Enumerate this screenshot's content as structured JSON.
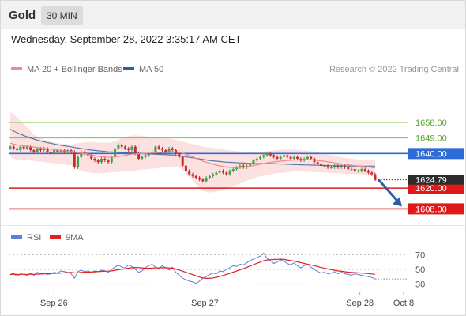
{
  "header": {
    "symbol": "Gold",
    "timeframe": "30 MIN"
  },
  "datetime": "Wednesday, September 28, 2022 3:35:17 AM CET",
  "legend": {
    "ma20": {
      "label": "MA 20 + Bollinger Bands",
      "color": "#f08a8a"
    },
    "ma50": {
      "label": "MA 50",
      "color": "#2d5fa0"
    },
    "credit": "Research © 2022 Trading Central"
  },
  "rsi_legend": {
    "rsi": {
      "label": "RSI",
      "color": "#5b7fd6"
    },
    "ma9": {
      "label": "9MA",
      "color": "#e02020"
    }
  },
  "chart_data": [
    {
      "type": "candlestick",
      "ylim": [
        1599.5,
        1679
      ],
      "levels": [
        {
          "value": 1658.0,
          "label": "1658.00",
          "kind": "resistance",
          "color": "#7cc34a"
        },
        {
          "value": 1649.0,
          "label": "1649.00",
          "kind": "resistance",
          "color": "#7cc34a"
        },
        {
          "value": 1640.0,
          "label": "1640.00",
          "kind": "pivot",
          "color": "#2d6bd6"
        },
        {
          "value": 1620.0,
          "label": "1620.00",
          "kind": "support",
          "color": "#e01818"
        },
        {
          "value": 1608.0,
          "label": "1608.00",
          "kind": "support",
          "color": "#e01818"
        }
      ],
      "last_price": {
        "value": 1624.79,
        "label": "1624.79"
      },
      "projection": {
        "from": 1625,
        "to": 1608
      },
      "x_ticks": [
        {
          "label": "Sep 26",
          "pos": 0.11
        },
        {
          "label": "Sep 27",
          "pos": 0.49
        },
        {
          "label": "Sep 28",
          "pos": 0.88
        },
        {
          "label": "Oct 8",
          "pos": 0.99
        }
      ],
      "close": [
        1644,
        1643,
        1642,
        1644,
        1643,
        1644,
        1642,
        1641,
        1643,
        1642,
        1643,
        1641,
        1640,
        1642,
        1641,
        1642,
        1641,
        1642,
        1641,
        1632,
        1638,
        1641,
        1640,
        1639,
        1637,
        1636,
        1635,
        1637,
        1636,
        1635,
        1638,
        1643,
        1645,
        1644,
        1643,
        1642,
        1644,
        1640,
        1637,
        1638,
        1639,
        1640,
        1641,
        1644,
        1643,
        1642,
        1641,
        1643,
        1642,
        1640,
        1638,
        1633,
        1630,
        1628,
        1627,
        1626,
        1625,
        1624,
        1626,
        1627,
        1628,
        1629,
        1630,
        1629,
        1628,
        1630,
        1631,
        1632,
        1633,
        1632,
        1633,
        1634,
        1636,
        1637,
        1638,
        1639,
        1640,
        1639,
        1638,
        1637,
        1638,
        1639,
        1638,
        1637,
        1638,
        1637,
        1636,
        1637,
        1638,
        1637,
        1635,
        1634,
        1633,
        1633,
        1632,
        1632,
        1633,
        1632,
        1633,
        1632,
        1631,
        1631,
        1630,
        1630,
        1631,
        1630,
        1629,
        1628,
        1625
      ],
      "ma20": [
        1646,
        1645.5,
        1645,
        1644.8,
        1644.5,
        1644.2,
        1644,
        1643.8,
        1643.5,
        1643.3,
        1643,
        1642.8,
        1642.5,
        1642.3,
        1642,
        1641.8,
        1641.6,
        1641.4,
        1641.2,
        1640.8,
        1640.5,
        1640.2,
        1640,
        1639.6,
        1639.2,
        1638.8,
        1638.4,
        1638.2,
        1638,
        1637.8,
        1637.8,
        1638,
        1638.3,
        1638.6,
        1639,
        1639.3,
        1639.6,
        1639.8,
        1639.9,
        1640,
        1640.1,
        1640.2,
        1640.3,
        1640.5,
        1640.6,
        1640.7,
        1640.8,
        1641,
        1641.1,
        1641,
        1640.7,
        1640.2,
        1639.5,
        1638.8,
        1638,
        1637.2,
        1636.4,
        1635.6,
        1635,
        1634.4,
        1633.8,
        1633.3,
        1632.9,
        1632.5,
        1632.2,
        1632,
        1631.9,
        1631.9,
        1632,
        1632.2,
        1632.4,
        1632.7,
        1633,
        1633.4,
        1633.8,
        1634.2,
        1634.6,
        1634.9,
        1635.2,
        1635.4,
        1635.6,
        1635.8,
        1636,
        1636.1,
        1636.2,
        1636.3,
        1636.4,
        1636.5,
        1636.5,
        1636.4,
        1636.2,
        1636,
        1635.8,
        1635.5,
        1635.2,
        1634.9,
        1634.6,
        1634.3,
        1634,
        1633.8,
        1633.5,
        1633.2,
        1633,
        1632.8,
        1632.6,
        1632.4,
        1632.2,
        1632,
        1631.6
      ],
      "bb_upper": [
        1664,
        1663,
        1661,
        1659,
        1657,
        1655,
        1653,
        1651,
        1650,
        1649,
        1648,
        1647.5,
        1647,
        1646.5,
        1646,
        1645.8,
        1645.6,
        1645.4,
        1645.2,
        1645.5,
        1646,
        1646.3,
        1646.5,
        1646.6,
        1646.6,
        1646.5,
        1646.4,
        1646.3,
        1646.2,
        1646.3,
        1646.5,
        1647,
        1648,
        1649,
        1649.5,
        1650,
        1650.3,
        1650.5,
        1650.4,
        1650.2,
        1650,
        1649.8,
        1649.6,
        1649.4,
        1649.2,
        1649,
        1648.8,
        1648.6,
        1648.4,
        1648,
        1647.5,
        1647,
        1646.5,
        1646,
        1645.5,
        1645,
        1644.5,
        1644,
        1643.7,
        1643.4,
        1643.2,
        1643,
        1642.7,
        1642.4,
        1642.1,
        1641.8,
        1641.6,
        1641.4,
        1641.2,
        1641,
        1640.9,
        1640.8,
        1640.8,
        1640.9,
        1641,
        1641.2,
        1641.4,
        1641.6,
        1641.8,
        1642,
        1642.1,
        1642.2,
        1642.3,
        1642.3,
        1642.3,
        1642.2,
        1642,
        1641.8,
        1641.6,
        1641.3,
        1641,
        1640.6,
        1640.2,
        1639.8,
        1639.4,
        1639,
        1638.6,
        1638.2,
        1637.9,
        1637.6,
        1637.3,
        1637,
        1636.8,
        1636.6,
        1636.5,
        1636.4,
        1636.3,
        1636.2,
        1636.2
      ],
      "bb_lower": [
        1638,
        1637,
        1636.5,
        1636.5,
        1636.3,
        1636.2,
        1636,
        1635.8,
        1635.5,
        1635.3,
        1635,
        1634.8,
        1634.5,
        1634.3,
        1634,
        1633.8,
        1633.6,
        1633.4,
        1633.2,
        1632,
        1631,
        1630,
        1629.5,
        1629,
        1628.8,
        1628.6,
        1628.5,
        1628.6,
        1628.8,
        1629,
        1629.2,
        1629.3,
        1629.4,
        1629.5,
        1629.6,
        1629.8,
        1630,
        1630.2,
        1630.4,
        1630.6,
        1630.8,
        1631,
        1631.2,
        1631.4,
        1631.6,
        1631.8,
        1632,
        1632.2,
        1632.4,
        1632.3,
        1631.8,
        1630.5,
        1628.5,
        1626.5,
        1624.5,
        1622,
        1620,
        1618.5,
        1617.8,
        1617.5,
        1617.7,
        1618,
        1618.5,
        1619,
        1619.6,
        1620.3,
        1621,
        1621.8,
        1622.6,
        1623.4,
        1624.2,
        1625,
        1625.7,
        1626.3,
        1626.8,
        1627.2,
        1627.6,
        1628,
        1628.3,
        1628.6,
        1628.8,
        1629,
        1629.2,
        1629.4,
        1629.5,
        1629.6,
        1629.6,
        1629.6,
        1629.5,
        1629.4,
        1629.3,
        1629.2,
        1629.1,
        1629,
        1628.9,
        1628.8,
        1628.7,
        1628.6,
        1628.5,
        1628.4,
        1628.3,
        1628.2,
        1628.1,
        1628,
        1627.9,
        1627.8,
        1627.6,
        1627.3,
        1627
      ],
      "ma50": [
        1654,
        1653,
        1652,
        1651.2,
        1650.4,
        1649.7,
        1649,
        1648.4,
        1647.8,
        1647.3,
        1646.8,
        1646.3,
        1645.9,
        1645.5,
        1645.1,
        1644.8,
        1644.5,
        1644.2,
        1643.9,
        1643.5,
        1643.2,
        1642.9,
        1642.6,
        1642.3,
        1642,
        1641.8,
        1641.6,
        1641.4,
        1641.2,
        1641,
        1640.9,
        1640.8,
        1640.7,
        1640.6,
        1640.5,
        1640.4,
        1640.3,
        1640.2,
        1640.1,
        1640,
        1639.9,
        1639.8,
        1639.7,
        1639.6,
        1639.5,
        1639.4,
        1639.3,
        1639.2,
        1639.1,
        1638.9,
        1638.7,
        1638.4,
        1638.1,
        1637.8,
        1637.5,
        1637.2,
        1636.9,
        1636.6,
        1636.3,
        1636,
        1635.8,
        1635.6,
        1635.4,
        1635.2,
        1635,
        1634.9,
        1634.8,
        1634.7,
        1634.6,
        1634.5,
        1634.4,
        1634.3,
        1634.2,
        1634.2,
        1634.2,
        1634.2,
        1634.2,
        1634.2,
        1634.2,
        1634.1,
        1634,
        1633.9,
        1633.8,
        1633.7,
        1633.6,
        1633.6,
        1633.5,
        1633.4,
        1633.4,
        1633.3,
        1633.3,
        1633.2,
        1633.1,
        1633.1,
        1633,
        1633,
        1632.9,
        1632.9,
        1632.9,
        1632.8,
        1632.8,
        1632.8,
        1632.7,
        1632.7,
        1632.7,
        1632.7,
        1632.7,
        1632.7,
        1632.7
      ]
    },
    {
      "type": "line",
      "ylim": [
        20,
        80
      ],
      "y_ticks": [
        30,
        50,
        70
      ],
      "rsi": [
        43,
        45,
        40,
        44,
        43,
        42,
        45,
        42,
        46,
        44,
        45,
        43,
        44,
        46,
        45,
        48,
        47,
        46,
        44,
        38,
        47,
        49,
        47,
        48,
        46,
        48,
        47,
        49,
        48,
        46,
        50,
        53,
        56,
        53,
        52,
        56,
        54,
        50,
        46,
        48,
        52,
        55,
        57,
        53,
        51,
        55,
        52,
        49,
        53,
        46,
        42,
        38,
        36,
        34,
        33,
        31,
        34,
        38,
        40,
        43,
        45,
        44,
        48,
        47,
        50,
        52,
        55,
        54,
        57,
        56,
        59,
        62,
        64,
        66,
        68,
        72,
        65,
        62,
        58,
        60,
        63,
        61,
        58,
        56,
        59,
        55,
        52,
        55,
        57,
        53,
        50,
        47,
        45,
        46,
        44,
        45,
        47,
        44,
        46,
        44,
        43,
        42,
        44,
        43,
        42,
        41,
        40,
        39,
        37
      ],
      "ma9": [
        43,
        43.5,
        43,
        43.2,
        43.3,
        43.3,
        43.5,
        43.4,
        43.6,
        43.7,
        44,
        44.2,
        44.4,
        44.6,
        44.8,
        45,
        45.3,
        45.6,
        45.8,
        45.2,
        45.4,
        45.8,
        46.1,
        46.3,
        46.5,
        46.7,
        47,
        47.3,
        47.5,
        47.6,
        48,
        48.8,
        49.6,
        50.2,
        50.8,
        51.6,
        52.3,
        52.6,
        52.4,
        52,
        51.6,
        51.5,
        51.8,
        52,
        52,
        52.2,
        52.2,
        52,
        51.6,
        50.5,
        49,
        47.5,
        46,
        44.4,
        42.8,
        41.2,
        39.6,
        38.4,
        37.8,
        37.8,
        38.4,
        39.2,
        40.5,
        41.8,
        43.2,
        44.6,
        46.2,
        47.8,
        49.4,
        51,
        52.8,
        54.6,
        56.4,
        58.2,
        60,
        61.8,
        62.8,
        63.2,
        63.4,
        63.6,
        63.8,
        63.5,
        62.8,
        62,
        61.2,
        60.2,
        59.2,
        58,
        57,
        56,
        55,
        53.8,
        52.6,
        51.5,
        50.5,
        49.6,
        48.8,
        48,
        47.4,
        46.8,
        46.3,
        45.9,
        45.6,
        45.3,
        45,
        44.7,
        44.3,
        43.8,
        43.2
      ]
    }
  ]
}
